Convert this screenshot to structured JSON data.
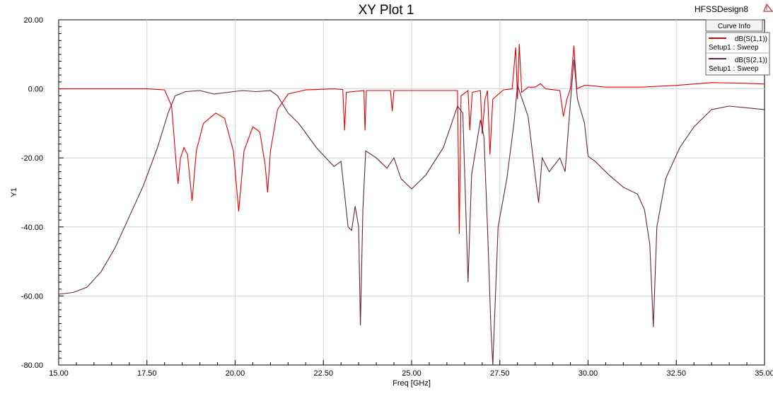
{
  "window": {
    "title": "XY Plot 1",
    "design_name": "HFSSDesign8",
    "logo_icon": "hfss-logo-icon"
  },
  "legend": {
    "header": "Curve Info",
    "items": [
      {
        "name": "dB(S(1,1))",
        "subtitle": "Setup1 : Sweep",
        "color": "#e00000"
      },
      {
        "name": "dB(S(2,1))",
        "subtitle": "Setup1 : Sweep",
        "color": "#6b2045"
      }
    ]
  },
  "chart_data": {
    "type": "line",
    "title": "XY Plot 1",
    "xlabel": "Freq [GHz]",
    "ylabel": "Y1",
    "xlim": [
      15.0,
      35.0
    ],
    "ylim": [
      -80.0,
      20.0
    ],
    "x_ticks": [
      "15.00",
      "17.50",
      "20.00",
      "22.50",
      "25.00",
      "27.50",
      "30.00",
      "32.50",
      "35.00"
    ],
    "y_ticks": [
      "20.00",
      "0.00",
      "-20.00",
      "-40.00",
      "-60.00",
      "-80.00"
    ],
    "grid": true,
    "legend_position": "top-right",
    "series": [
      {
        "name": "dB(S(1,1))",
        "color": "#e00000",
        "points": [
          [
            15.0,
            0.0
          ],
          [
            17.5,
            0.0
          ],
          [
            18.0,
            -0.3
          ],
          [
            18.2,
            -5.0
          ],
          [
            18.33,
            -22.0
          ],
          [
            18.38,
            -27.5
          ],
          [
            18.45,
            -20.0
          ],
          [
            18.55,
            -17.0
          ],
          [
            18.65,
            -19.0
          ],
          [
            18.78,
            -32.5
          ],
          [
            18.9,
            -18.0
          ],
          [
            19.1,
            -10.0
          ],
          [
            19.45,
            -7.0
          ],
          [
            19.7,
            -8.5
          ],
          [
            19.95,
            -18.0
          ],
          [
            20.1,
            -35.5
          ],
          [
            20.25,
            -18.0
          ],
          [
            20.5,
            -11.0
          ],
          [
            20.7,
            -12.5
          ],
          [
            20.85,
            -22.0
          ],
          [
            20.92,
            -30.0
          ],
          [
            21.0,
            -18.0
          ],
          [
            21.2,
            -6.0
          ],
          [
            21.5,
            -1.5
          ],
          [
            22.0,
            -0.3
          ],
          [
            22.8,
            0.0
          ],
          [
            23.05,
            -0.2
          ],
          [
            23.1,
            -12.0
          ],
          [
            23.15,
            -1.0
          ],
          [
            23.65,
            -0.5
          ],
          [
            23.68,
            -12.0
          ],
          [
            23.72,
            -0.5
          ],
          [
            24.4,
            -0.5
          ],
          [
            24.45,
            -6.5
          ],
          [
            24.5,
            -0.5
          ],
          [
            26.3,
            -0.5
          ],
          [
            26.35,
            -42.0
          ],
          [
            26.4,
            -2.0
          ],
          [
            26.6,
            -0.5
          ],
          [
            26.65,
            -12.0
          ],
          [
            26.72,
            -1.0
          ],
          [
            26.95,
            -0.5
          ],
          [
            27.0,
            -13.0
          ],
          [
            27.08,
            -3.0
          ],
          [
            27.15,
            -0.5
          ],
          [
            27.22,
            -19.0
          ],
          [
            27.3,
            -3.0
          ],
          [
            27.6,
            -0.3
          ],
          [
            27.85,
            0.0
          ],
          [
            27.95,
            12.0
          ],
          [
            28.0,
            -3.0
          ],
          [
            28.05,
            13.0
          ],
          [
            28.12,
            -1.0
          ],
          [
            28.3,
            0.5
          ],
          [
            28.5,
            0.5
          ],
          [
            28.65,
            1.5
          ],
          [
            28.8,
            0.0
          ],
          [
            29.2,
            -0.5
          ],
          [
            29.3,
            -8.0
          ],
          [
            29.4,
            -3.0
          ],
          [
            29.5,
            0.0
          ],
          [
            29.6,
            12.5
          ],
          [
            29.68,
            0.0
          ],
          [
            29.9,
            1.0
          ],
          [
            30.0,
            1.0
          ],
          [
            30.5,
            0.5
          ],
          [
            31.5,
            0.5
          ],
          [
            32.5,
            1.0
          ],
          [
            33.5,
            1.8
          ],
          [
            34.5,
            1.6
          ],
          [
            35.0,
            1.4
          ]
        ]
      },
      {
        "name": "dB(S(2,1))",
        "color": "#6b2045",
        "points": [
          [
            15.0,
            -59.5
          ],
          [
            15.4,
            -59.0
          ],
          [
            15.8,
            -57.5
          ],
          [
            16.2,
            -53.0
          ],
          [
            16.6,
            -46.0
          ],
          [
            17.0,
            -37.0
          ],
          [
            17.4,
            -28.0
          ],
          [
            17.8,
            -17.0
          ],
          [
            18.1,
            -7.0
          ],
          [
            18.3,
            -2.0
          ],
          [
            18.6,
            -0.8
          ],
          [
            19.0,
            -0.5
          ],
          [
            19.4,
            -1.5
          ],
          [
            19.8,
            -1.0
          ],
          [
            20.2,
            -0.5
          ],
          [
            20.6,
            -0.8
          ],
          [
            21.0,
            -0.5
          ],
          [
            21.2,
            -2.0
          ],
          [
            21.5,
            -7.0
          ],
          [
            21.8,
            -10.0
          ],
          [
            22.3,
            -17.0
          ],
          [
            22.8,
            -22.5
          ],
          [
            23.0,
            -21.0
          ],
          [
            23.2,
            -40.0
          ],
          [
            23.3,
            -41.0
          ],
          [
            23.4,
            -34.0
          ],
          [
            23.5,
            -40.0
          ],
          [
            23.55,
            -68.5
          ],
          [
            23.62,
            -35.0
          ],
          [
            23.7,
            -18.0
          ],
          [
            24.0,
            -20.0
          ],
          [
            24.3,
            -23.0
          ],
          [
            24.5,
            -20.0
          ],
          [
            24.7,
            -26.0
          ],
          [
            25.0,
            -29.0
          ],
          [
            25.4,
            -25.0
          ],
          [
            25.9,
            -17.0
          ],
          [
            26.3,
            -5.0
          ],
          [
            26.45,
            -7.0
          ],
          [
            26.6,
            -56.0
          ],
          [
            26.7,
            -25.0
          ],
          [
            26.95,
            -9.0
          ],
          [
            27.05,
            -14.0
          ],
          [
            27.15,
            -40.0
          ],
          [
            27.25,
            -70.0
          ],
          [
            27.3,
            -80.0
          ],
          [
            27.45,
            -40.0
          ],
          [
            27.7,
            -26.0
          ],
          [
            27.9,
            -10.0
          ],
          [
            28.0,
            1.0
          ],
          [
            28.1,
            -2.0
          ],
          [
            28.3,
            -8.0
          ],
          [
            28.5,
            -25.0
          ],
          [
            28.6,
            -33.0
          ],
          [
            28.7,
            -20.0
          ],
          [
            28.9,
            -24.0
          ],
          [
            29.2,
            -20.0
          ],
          [
            29.35,
            -24.0
          ],
          [
            29.5,
            -4.0
          ],
          [
            29.6,
            8.5
          ],
          [
            29.7,
            -3.0
          ],
          [
            29.9,
            -10.0
          ],
          [
            30.0,
            -19.5
          ],
          [
            30.2,
            -21.0
          ],
          [
            30.6,
            -25.0
          ],
          [
            31.0,
            -28.5
          ],
          [
            31.4,
            -30.5
          ],
          [
            31.6,
            -35.0
          ],
          [
            31.75,
            -45.0
          ],
          [
            31.85,
            -69.0
          ],
          [
            31.95,
            -40.0
          ],
          [
            32.2,
            -26.0
          ],
          [
            32.6,
            -17.0
          ],
          [
            33.0,
            -11.0
          ],
          [
            33.5,
            -6.0
          ],
          [
            34.0,
            -5.0
          ],
          [
            34.5,
            -5.5
          ],
          [
            35.0,
            -6.0
          ]
        ]
      }
    ]
  }
}
